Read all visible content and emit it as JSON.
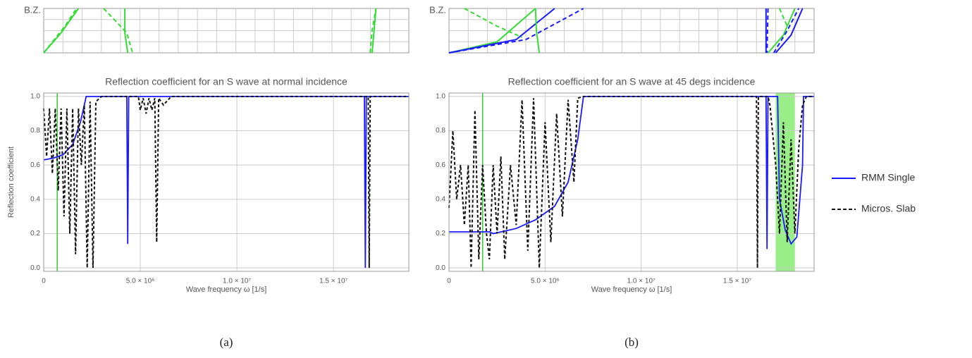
{
  "chart_data": [
    {
      "type": "line",
      "title": "Reflection coefficient for an S wave at normal incidence",
      "x_label": "Wave frequency  ω  [1/s]",
      "y_label": "Reflection  coefficient",
      "inset_label": "B.Z.",
      "caption": "(a)",
      "xlim": [
        0,
        18900000
      ],
      "ylim": [
        -0.02,
        1.02
      ],
      "xticks": [
        0,
        {
          "value": 5000000,
          "label": "5.0 × 10⁶"
        },
        {
          "value": 10000000,
          "label": "1.0 × 10⁷"
        },
        {
          "value": 15000000,
          "label": "1.5 × 10⁷"
        }
      ],
      "yticks": [
        {
          "value": 0,
          "label": "0.0"
        },
        {
          "value": 0.2,
          "label": "0.2"
        },
        {
          "value": 0.4,
          "label": "0.4"
        },
        {
          "value": 0.6,
          "label": "0.6"
        },
        {
          "value": 0.8,
          "label": "0.8"
        },
        {
          "value": 1,
          "label": "1.0"
        }
      ],
      "grid": true,
      "vlines": [
        {
          "x": 700000,
          "color": "#33cc33"
        }
      ],
      "series": [
        {
          "color": "#1a1aff",
          "dash": false,
          "x": [
            0,
            500000,
            1000000,
            1500000,
            1900000,
            2200000,
            4300000,
            4350000,
            4400000,
            16600000,
            16650000,
            16700000,
            18900000
          ],
          "values": [
            0.63,
            0.64,
            0.66,
            0.72,
            0.85,
            1.0,
            1.0,
            0.14,
            1.0,
            1.0,
            0.0,
            1.0,
            1.0
          ]
        },
        {
          "color": "#111111",
          "dash": true,
          "x": [
            0,
            150000,
            300000,
            450000,
            600000,
            750000,
            900000,
            1050000,
            1200000,
            1350000,
            1500000,
            1650000,
            1800000,
            1950000,
            2100000,
            2250000,
            2400000,
            2550000,
            2700000,
            3000000,
            4900000,
            5000000,
            5150000,
            5300000,
            5450000,
            5600000,
            5750000,
            5850000,
            5950000,
            6200000,
            6600000,
            16800000,
            16850000,
            16900000,
            18900000
          ],
          "values": [
            0.93,
            0.65,
            0.93,
            0.55,
            0.93,
            0.45,
            0.93,
            0.3,
            0.93,
            0.2,
            0.93,
            0.08,
            0.93,
            0.6,
            0.95,
            0.0,
            0.97,
            0.0,
            0.97,
            1.0,
            1.0,
            0.92,
            0.99,
            0.9,
            0.99,
            0.92,
            0.99,
            0.15,
            0.99,
            0.95,
            1.0,
            1.0,
            0.0,
            1.0,
            1.0
          ]
        }
      ],
      "inset": {
        "ylim": [
          0,
          1
        ],
        "series": [
          {
            "color": "#33dd33",
            "dash": false,
            "x": [
              0,
              900000,
              1800000
            ],
            "values": [
              0,
              0.45,
              1
            ]
          },
          {
            "color": "#33dd33",
            "dash": true,
            "x": [
              0,
              1100000,
              1700000
            ],
            "values": [
              0,
              0.6,
              1
            ]
          },
          {
            "color": "#33dd33",
            "dash": true,
            "x": [
              3100000,
              4300000,
              4600000
            ],
            "values": [
              1,
              0.45,
              0
            ]
          },
          {
            "color": "#33dd33",
            "dash": false,
            "x": [
              4200000,
              4200000,
              4350000
            ],
            "values": [
              1,
              0.45,
              0
            ]
          },
          {
            "color": "#33dd33",
            "dash": false,
            "x": [
              17000000,
              17100000,
              17200000
            ],
            "values": [
              0,
              0.5,
              1
            ]
          },
          {
            "color": "#33dd33",
            "dash": true,
            "x": [
              16900000,
              17000000,
              17200000
            ],
            "values": [
              0,
              0.5,
              1
            ]
          }
        ]
      }
    },
    {
      "type": "line",
      "title": "Reflection coefficient for an S wave at 45 degs incidence",
      "x_label": "Wave frequency  ω  [1/s]",
      "inset_label": "B.Z.",
      "caption": "(b)",
      "xlim": [
        0,
        19000000
      ],
      "ylim": [
        -0.02,
        1.02
      ],
      "xticks": [
        0,
        {
          "value": 5000000,
          "label": "5.0 × 10⁶"
        },
        {
          "value": 10000000,
          "label": "1.0 × 10⁷"
        },
        {
          "value": 15000000,
          "label": "1.5 × 10⁷"
        }
      ],
      "yticks": [
        {
          "value": 0,
          "label": "0.0"
        },
        {
          "value": 0.2,
          "label": "0.2"
        },
        {
          "value": 0.4,
          "label": "0.4"
        },
        {
          "value": 0.6,
          "label": "0.6"
        },
        {
          "value": 0.8,
          "label": "0.8"
        },
        {
          "value": 1,
          "label": "1.0"
        }
      ],
      "grid": true,
      "vlines": [
        {
          "x": 1750000,
          "color": "#33cc33"
        }
      ],
      "band": {
        "x": [
          17000000,
          18000000
        ],
        "color": "#99ee88"
      },
      "series": [
        {
          "name": "RMM Single",
          "color": "#1a1aff",
          "dash": false,
          "x": [
            0,
            2100000,
            2300000,
            3500000,
            4500000,
            5500000,
            6200000,
            6700000,
            7000000,
            16500000,
            16550000,
            16600000,
            17100000,
            17200000,
            17500000,
            17800000,
            18100000,
            18400000,
            18450000,
            19000000
          ],
          "values": [
            0.21,
            0.21,
            0.2,
            0.23,
            0.28,
            0.36,
            0.5,
            0.75,
            1.0,
            1.0,
            0.11,
            1.0,
            1.0,
            0.4,
            0.22,
            0.14,
            0.18,
            0.6,
            1.0,
            1.0
          ]
        },
        {
          "name": "Micros. Slab",
          "color": "#111111",
          "dash": true,
          "x": [
            0,
            200000,
            400000,
            600000,
            800000,
            1000000,
            1150000,
            1350000,
            1550000,
            1750000,
            1950000,
            2100000,
            2300000,
            2500000,
            2700000,
            2900000,
            3200000,
            3500000,
            3800000,
            4100000,
            4400000,
            4700000,
            5000000,
            5300000,
            5600000,
            5900000,
            6200000,
            6500000,
            6700000,
            7000000,
            16000000,
            16050000,
            16100000,
            16600000,
            16700000,
            17000000,
            17200000,
            17400000,
            17600000,
            17800000,
            18000000,
            18200000,
            18400000,
            18600000,
            19000000
          ],
          "values": [
            0.35,
            0.8,
            0.4,
            0.6,
            0.25,
            0.6,
            0.0,
            0.92,
            0.05,
            0.6,
            0.2,
            0.05,
            0.6,
            0.2,
            0.65,
            0.05,
            0.6,
            0.25,
            0.98,
            0.1,
            0.99,
            0.0,
            0.85,
            0.15,
            0.9,
            0.3,
            0.98,
            0.5,
            0.99,
            1.0,
            1.0,
            0.0,
            1.0,
            1.0,
            0.95,
            0.6,
            0.2,
            0.85,
            0.15,
            0.75,
            0.2,
            0.7,
            0.95,
            1.0,
            1.0
          ]
        }
      ],
      "inset": {
        "ylim": [
          0,
          1
        ],
        "series": [
          {
            "color": "#33dd33",
            "dash": false,
            "x": [
              0,
              2500000,
              4500000
            ],
            "values": [
              0,
              0.25,
              1
            ]
          },
          {
            "color": "#33dd33",
            "dash": true,
            "x": [
              800000,
              2500000,
              3800000
            ],
            "values": [
              1,
              0.6,
              0.35
            ]
          },
          {
            "color": "#1a1aff",
            "dash": false,
            "x": [
              0,
              3500000,
              5500000
            ],
            "values": [
              0,
              0.3,
              1
            ]
          },
          {
            "color": "#1a1aff",
            "dash": true,
            "x": [
              0,
              4000000,
              7000000
            ],
            "values": [
              0,
              0.3,
              1
            ]
          },
          {
            "color": "#33dd33",
            "dash": false,
            "x": [
              4500000,
              4550000,
              4700000
            ],
            "values": [
              1,
              0.5,
              0
            ]
          },
          {
            "color": "#1a1aff",
            "dash": false,
            "x": [
              16500000,
              16500000
            ],
            "values": [
              1,
              0
            ]
          },
          {
            "color": "#1a1aff",
            "dash": true,
            "x": [
              16600000,
              16550000
            ],
            "values": [
              1,
              0
            ]
          },
          {
            "color": "#33dd33",
            "dash": false,
            "x": [
              16600000,
              17400000,
              18000000
            ],
            "values": [
              0,
              0.4,
              1
            ]
          },
          {
            "color": "#1a1aff",
            "dash": false,
            "x": [
              17000000,
              17800000,
              18400000
            ],
            "values": [
              0,
              0.4,
              1
            ]
          },
          {
            "color": "#1a1aff",
            "dash": true,
            "x": [
              16900000,
              17600000,
              18200000
            ],
            "values": [
              0,
              0.5,
              1
            ]
          },
          {
            "color": "#33dd33",
            "dash": true,
            "x": [
              17200000,
              17600000
            ],
            "values": [
              1,
              0.6
            ]
          }
        ]
      }
    }
  ]
}
